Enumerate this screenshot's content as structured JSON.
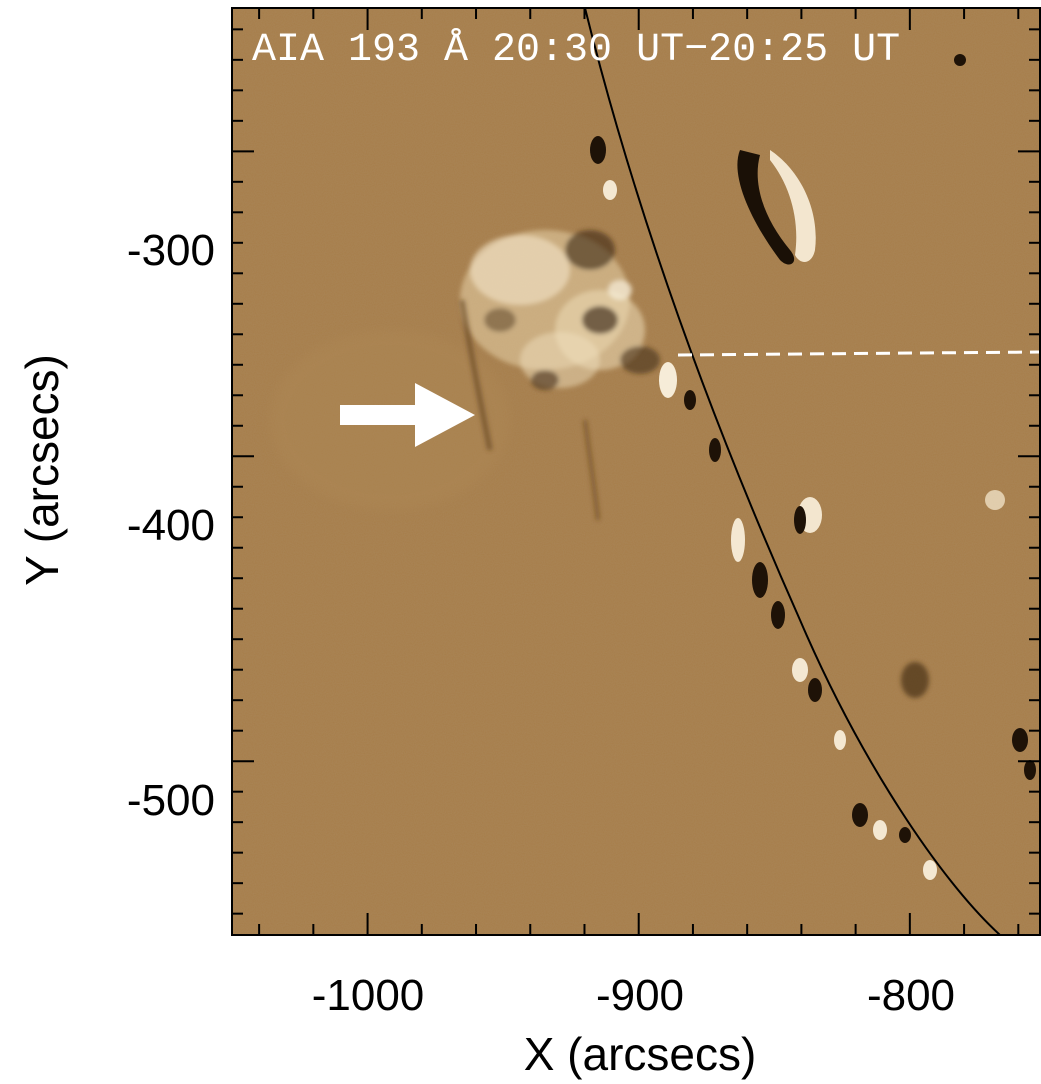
{
  "image_title": "AIA 193 Å  20:30 UT−20:25 UT",
  "x_axis": {
    "label": "X (arcsecs)",
    "range": [
      -1050,
      -752
    ],
    "ticks": [
      {
        "value": -1000,
        "label": "-1000"
      },
      {
        "value": -900,
        "label": "-900"
      },
      {
        "value": -800,
        "label": "-800"
      }
    ]
  },
  "y_axis": {
    "label": "Y (arcsecs)",
    "range": [
      -253,
      -557
    ],
    "ticks": [
      {
        "value": -300,
        "label": "-300"
      },
      {
        "value": -400,
        "label": "-400"
      },
      {
        "value": -500,
        "label": "-500"
      }
    ]
  },
  "colors": {
    "background": "#a67d49",
    "limb_line": "#000000",
    "arrow": "#ffffff",
    "dashed_line": "#ffffff"
  }
}
